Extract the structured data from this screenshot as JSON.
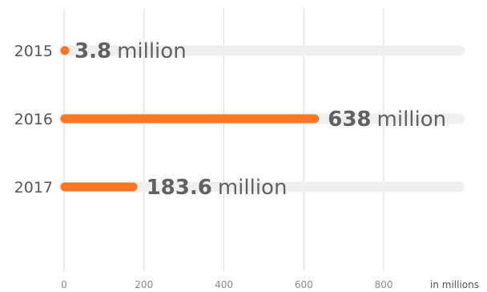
{
  "chart_data": {
    "type": "bar",
    "orientation": "horizontal",
    "categories": [
      "2015",
      "2016",
      "2017"
    ],
    "values": [
      3.8,
      638,
      183.6
    ],
    "value_labels": [
      {
        "number": "3.8",
        "unit": "million"
      },
      {
        "number": "638",
        "unit": "million"
      },
      {
        "number": "183.6",
        "unit": "million"
      }
    ],
    "xlim": [
      0,
      1000
    ],
    "x_ticks": [
      0,
      200,
      400,
      600,
      800
    ],
    "x_tick_labels": [
      "0",
      "200",
      "400",
      "600",
      "800"
    ],
    "x_unit_label": "in millions",
    "grid": true,
    "colors": {
      "bar": "#fd7722",
      "track": "#efefef",
      "grid": "#d9d9d9",
      "label_text": "#616161"
    }
  }
}
